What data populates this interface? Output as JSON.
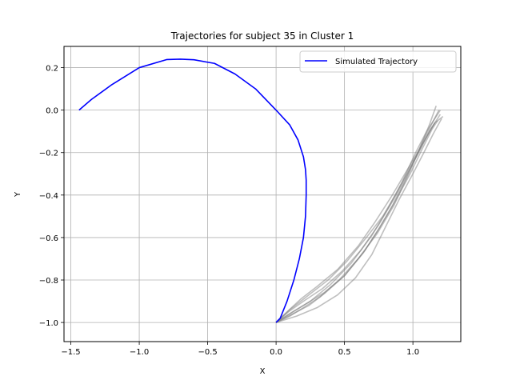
{
  "chart_data": {
    "type": "line",
    "title": "Trajectories for subject 35 in Cluster 1",
    "xlabel": "X",
    "ylabel": "Y",
    "xlim": [
      -1.55,
      1.35
    ],
    "ylim": [
      -1.09,
      0.3
    ],
    "xticks": [
      -1.5,
      -1.0,
      -0.5,
      0.0,
      0.5,
      1.0
    ],
    "xtick_labels": [
      "−1.5",
      "−1.0",
      "−0.5",
      "0.0",
      "0.5",
      "1.0"
    ],
    "yticks": [
      -1.0,
      -0.8,
      -0.6,
      -0.4,
      -0.2,
      0.0,
      0.2
    ],
    "ytick_labels": [
      "−1.0",
      "−0.8",
      "−0.6",
      "−0.4",
      "−0.2",
      "0.0",
      "0.2"
    ],
    "grid": true,
    "legend": {
      "placement": "top-right",
      "entries": [
        "Simulated Trajectory"
      ]
    },
    "colors": {
      "simulated": "#0000ff",
      "observed": "#808080"
    },
    "series": [
      {
        "name": "Simulated Trajectory",
        "color": "#0000ff",
        "x": [
          0.0,
          0.03,
          0.08,
          0.13,
          0.17,
          0.2,
          0.215,
          0.22,
          0.22,
          0.215,
          0.2,
          0.16,
          0.1,
          0.0,
          -0.15,
          -0.3,
          -0.45,
          -0.6,
          -0.7,
          -0.8,
          -1.0,
          -1.2,
          -1.35,
          -1.44
        ],
        "y": [
          -1.0,
          -0.98,
          -0.9,
          -0.8,
          -0.7,
          -0.6,
          -0.5,
          -0.4,
          -0.33,
          -0.28,
          -0.22,
          -0.14,
          -0.07,
          0.0,
          0.1,
          0.17,
          0.22,
          0.237,
          0.24,
          0.238,
          0.2,
          0.12,
          0.05,
          0.0
        ]
      }
    ],
    "observed": [
      {
        "x": [
          0.0,
          0.1,
          0.2,
          0.35,
          0.5,
          0.65,
          0.75,
          0.85,
          0.95,
          1.05,
          1.12,
          1.17
        ],
        "y": [
          -1.0,
          -0.96,
          -0.92,
          -0.86,
          -0.78,
          -0.66,
          -0.56,
          -0.45,
          -0.32,
          -0.18,
          -0.07,
          0.02
        ]
      },
      {
        "x": [
          0.0,
          0.12,
          0.25,
          0.4,
          0.55,
          0.7,
          0.82,
          0.92,
          1.02,
          1.1,
          1.16,
          1.2
        ],
        "y": [
          -1.0,
          -0.95,
          -0.9,
          -0.82,
          -0.72,
          -0.59,
          -0.46,
          -0.34,
          -0.2,
          -0.1,
          -0.04,
          0.0
        ]
      },
      {
        "x": [
          0.0,
          0.1,
          0.22,
          0.38,
          0.52,
          0.66,
          0.78,
          0.88,
          0.98,
          1.08,
          1.16,
          1.22
        ],
        "y": [
          -1.0,
          -0.94,
          -0.88,
          -0.8,
          -0.71,
          -0.6,
          -0.5,
          -0.39,
          -0.27,
          -0.15,
          -0.06,
          -0.03
        ]
      },
      {
        "x": [
          0.0,
          0.08,
          0.18,
          0.3,
          0.45,
          0.6,
          0.72,
          0.84,
          0.96,
          1.06,
          1.14,
          1.2
        ],
        "y": [
          -1.0,
          -0.95,
          -0.89,
          -0.83,
          -0.75,
          -0.64,
          -0.53,
          -0.41,
          -0.28,
          -0.17,
          -0.08,
          -0.02
        ]
      },
      {
        "x": [
          0.0,
          0.15,
          0.3,
          0.45,
          0.58,
          0.7,
          0.8,
          0.9,
          1.0,
          1.08,
          1.15,
          1.21
        ],
        "y": [
          -1.0,
          -0.97,
          -0.93,
          -0.87,
          -0.79,
          -0.68,
          -0.55,
          -0.42,
          -0.3,
          -0.2,
          -0.11,
          -0.04
        ]
      },
      {
        "x": [
          0.0,
          0.1,
          0.2,
          0.32,
          0.46,
          0.6,
          0.74,
          0.86,
          0.97,
          1.07,
          1.15,
          1.19
        ],
        "y": [
          -1.0,
          -0.97,
          -0.93,
          -0.88,
          -0.8,
          -0.7,
          -0.58,
          -0.45,
          -0.3,
          -0.15,
          -0.05,
          0.0
        ]
      },
      {
        "x": [
          0.0,
          0.12,
          0.24,
          0.36,
          0.5,
          0.64,
          0.76,
          0.87,
          0.98,
          1.07,
          1.14,
          1.18
        ],
        "y": [
          -1.0,
          -0.96,
          -0.92,
          -0.86,
          -0.78,
          -0.67,
          -0.55,
          -0.43,
          -0.3,
          -0.18,
          -0.09,
          -0.05
        ]
      },
      {
        "x": [
          0.0,
          0.09,
          0.2,
          0.34,
          0.48,
          0.62,
          0.75,
          0.86,
          0.96,
          1.05,
          1.12,
          1.16
        ],
        "y": [
          -1.0,
          -0.95,
          -0.9,
          -0.84,
          -0.76,
          -0.66,
          -0.54,
          -0.42,
          -0.3,
          -0.19,
          -0.1,
          -0.06
        ]
      }
    ]
  }
}
